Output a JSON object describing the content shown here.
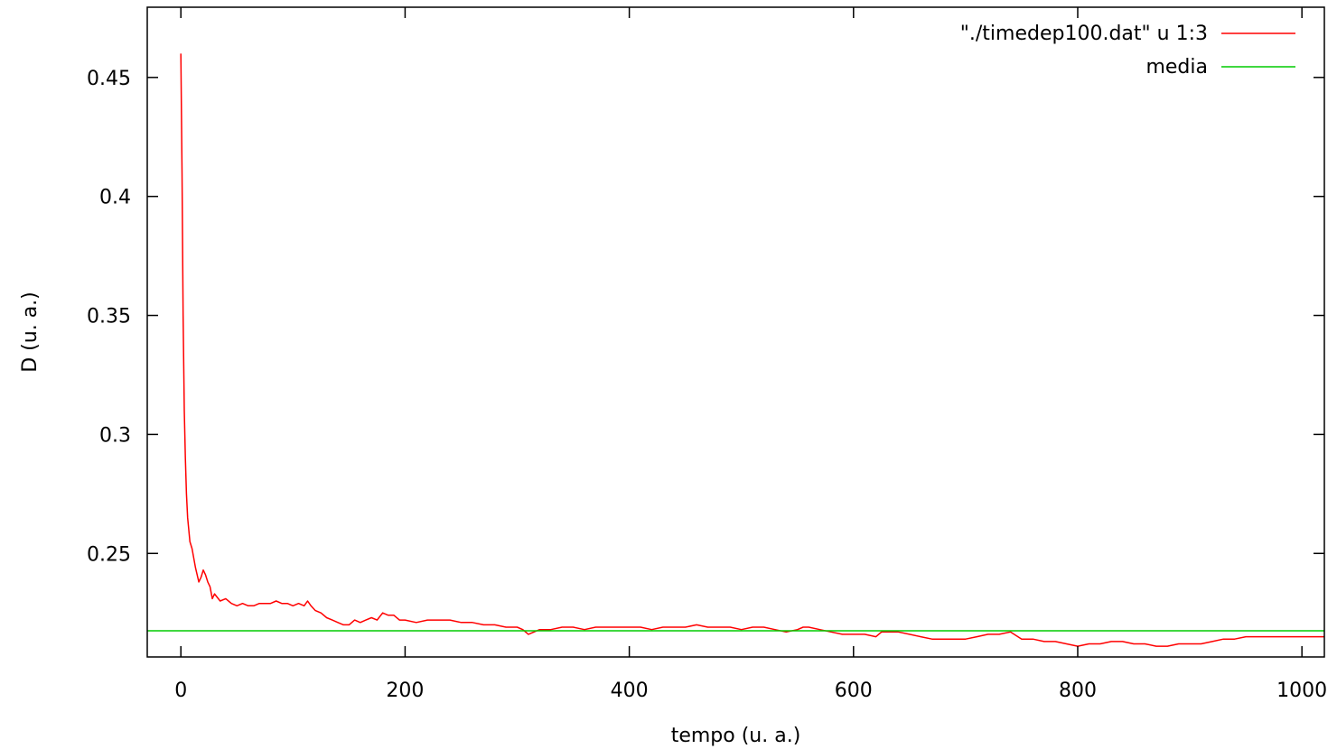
{
  "chart_data": {
    "type": "line",
    "title": "",
    "xlabel": "tempo (u. a.)",
    "ylabel": "D (u. a.)",
    "xlim": [
      -30,
      1020
    ],
    "ylim": [
      0.2065,
      0.4795
    ],
    "xticks": [
      0,
      200,
      400,
      600,
      800,
      1000
    ],
    "xtick_labels": [
      "0",
      "200",
      "400",
      "600",
      "800",
      "1000"
    ],
    "yticks": [
      0.25,
      0.3,
      0.35,
      0.4,
      0.45
    ],
    "ytick_labels": [
      "0.25",
      "0.3",
      "0.35",
      "0.4",
      "0.45"
    ],
    "grid": false,
    "legend_position": "top-right",
    "series": [
      {
        "name": "\"./timedep100.dat\" u 1:3",
        "color": "#ff0000",
        "x": [
          0,
          1,
          2,
          3,
          4,
          5,
          6,
          8,
          10,
          13,
          16,
          18,
          20,
          22,
          24,
          26,
          28,
          30,
          35,
          40,
          45,
          50,
          55,
          60,
          65,
          70,
          75,
          80,
          85,
          90,
          95,
          100,
          105,
          110,
          113,
          116,
          120,
          125,
          130,
          135,
          140,
          145,
          150,
          155,
          160,
          165,
          170,
          175,
          180,
          185,
          190,
          195,
          200,
          210,
          220,
          230,
          240,
          250,
          260,
          270,
          280,
          290,
          300,
          305,
          310,
          320,
          330,
          340,
          350,
          360,
          370,
          380,
          390,
          400,
          410,
          420,
          430,
          440,
          450,
          460,
          470,
          480,
          490,
          500,
          510,
          520,
          530,
          540,
          550,
          555,
          560,
          570,
          580,
          590,
          600,
          610,
          620,
          625,
          630,
          640,
          650,
          660,
          670,
          680,
          690,
          700,
          710,
          720,
          730,
          740,
          750,
          760,
          770,
          780,
          790,
          800,
          810,
          820,
          830,
          840,
          850,
          860,
          870,
          880,
          890,
          900,
          910,
          920,
          930,
          940,
          950,
          960,
          970,
          980,
          990,
          1000,
          1010,
          1020
        ],
        "y": [
          0.46,
          0.41,
          0.35,
          0.31,
          0.29,
          0.275,
          0.265,
          0.255,
          0.252,
          0.244,
          0.238,
          0.24,
          0.243,
          0.241,
          0.238,
          0.236,
          0.231,
          0.233,
          0.23,
          0.231,
          0.229,
          0.228,
          0.229,
          0.228,
          0.228,
          0.229,
          0.229,
          0.229,
          0.23,
          0.229,
          0.229,
          0.228,
          0.229,
          0.228,
          0.23,
          0.228,
          0.226,
          0.225,
          0.223,
          0.222,
          0.221,
          0.22,
          0.22,
          0.222,
          0.221,
          0.222,
          0.223,
          0.222,
          0.225,
          0.224,
          0.224,
          0.222,
          0.222,
          0.221,
          0.222,
          0.222,
          0.222,
          0.221,
          0.221,
          0.22,
          0.22,
          0.219,
          0.219,
          0.218,
          0.216,
          0.218,
          0.218,
          0.219,
          0.219,
          0.218,
          0.219,
          0.219,
          0.219,
          0.219,
          0.219,
          0.218,
          0.219,
          0.219,
          0.219,
          0.22,
          0.219,
          0.219,
          0.219,
          0.218,
          0.219,
          0.219,
          0.218,
          0.217,
          0.218,
          0.219,
          0.219,
          0.218,
          0.217,
          0.216,
          0.216,
          0.216,
          0.215,
          0.217,
          0.217,
          0.217,
          0.216,
          0.215,
          0.214,
          0.214,
          0.214,
          0.214,
          0.215,
          0.216,
          0.216,
          0.217,
          0.214,
          0.214,
          0.213,
          0.213,
          0.212,
          0.211,
          0.212,
          0.212,
          0.213,
          0.213,
          0.212,
          0.212,
          0.211,
          0.211,
          0.212,
          0.212,
          0.212,
          0.213,
          0.214,
          0.214,
          0.215,
          0.215,
          0.215,
          0.215,
          0.215,
          0.215,
          0.215,
          0.215
        ]
      },
      {
        "name": "media",
        "color": "#00cc00",
        "x": [
          -30,
          1020
        ],
        "y": [
          0.2175,
          0.2175
        ]
      }
    ]
  }
}
